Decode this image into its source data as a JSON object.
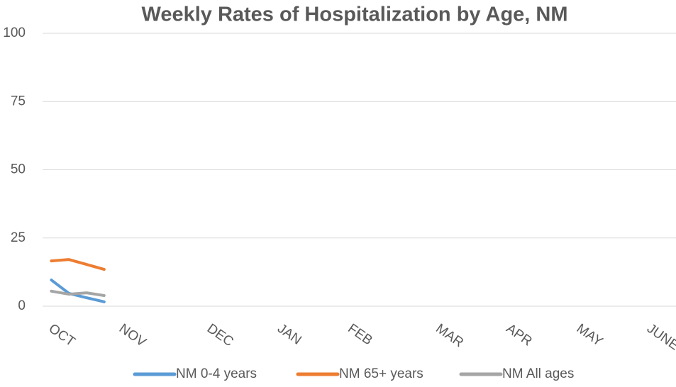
{
  "chart_data": {
    "type": "line",
    "title": "Weekly Rates of Hospitalization by Age, NM",
    "categories": [
      "OCT",
      null,
      null,
      null,
      "NOV",
      null,
      null,
      null,
      null,
      "DEC",
      null,
      null,
      null,
      "JAN",
      null,
      null,
      null,
      "FEB",
      null,
      null,
      null,
      null,
      "MAR",
      null,
      null,
      null,
      "APR",
      null,
      null,
      null,
      "MAY",
      null,
      null,
      null,
      "JUNE",
      null
    ],
    "series": [
      {
        "name": "NM 0-4 years",
        "color": "#5b9bd5",
        "values": [
          9.6,
          4.7,
          3.1,
          1.6,
          null,
          null,
          null,
          null,
          null,
          null,
          null,
          null,
          null,
          null,
          null,
          null,
          null,
          null,
          null,
          null,
          null,
          null,
          null,
          null,
          null,
          null,
          null,
          null,
          null,
          null,
          null,
          null,
          null,
          null,
          null,
          null
        ]
      },
      {
        "name": "NM 65+ years",
        "color": "#ed7d31",
        "values": [
          16.6,
          17.1,
          15.3,
          13.5,
          null,
          null,
          null,
          null,
          null,
          null,
          null,
          null,
          null,
          null,
          null,
          null,
          null,
          null,
          null,
          null,
          null,
          null,
          null,
          null,
          null,
          null,
          null,
          null,
          null,
          null,
          null,
          null,
          null,
          null,
          null,
          null
        ]
      },
      {
        "name": "NM All ages",
        "color": "#a5a5a5",
        "values": [
          5.5,
          4.4,
          4.9,
          3.9,
          null,
          null,
          null,
          null,
          null,
          null,
          null,
          null,
          null,
          null,
          null,
          null,
          null,
          null,
          null,
          null,
          null,
          null,
          null,
          null,
          null,
          null,
          null,
          null,
          null,
          null,
          null,
          null,
          null,
          null,
          null,
          null
        ]
      }
    ],
    "ylim": [
      0,
      100
    ],
    "yticks": [
      0,
      25,
      50,
      75,
      100
    ],
    "grid": true,
    "legend": "bottom"
  }
}
